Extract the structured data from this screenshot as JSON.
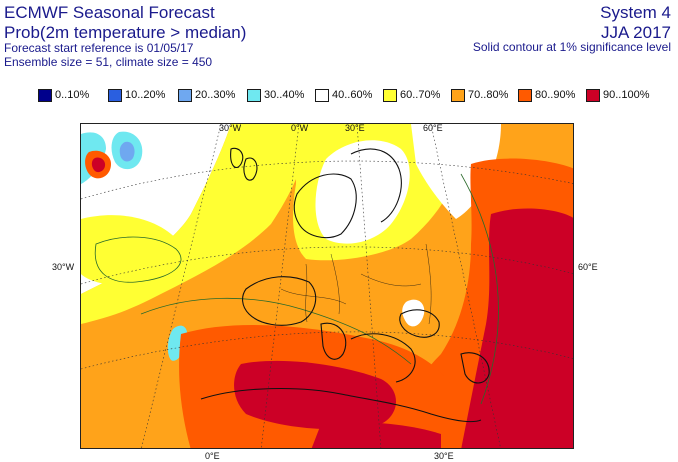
{
  "header": {
    "title": "ECMWF Seasonal Forecast",
    "subtitle": "Prob(2m temperature > median)",
    "start_ref": "Forecast start reference is 01/05/17",
    "ensemble": "Ensemble size = 51, climate size = 450",
    "system": "System 4",
    "period": "JJA 2017",
    "significance": "Solid contour at 1% significance level"
  },
  "legend": [
    {
      "label": "0..10%",
      "color": "#00008c"
    },
    {
      "label": "10..20%",
      "color": "#2a5fe0"
    },
    {
      "label": "20..30%",
      "color": "#6fa8f0"
    },
    {
      "label": "30..40%",
      "color": "#6fe8f0"
    },
    {
      "label": "40..60%",
      "color": "#ffffff"
    },
    {
      "label": "60..70%",
      "color": "#ffff33"
    },
    {
      "label": "70..80%",
      "color": "#ffa31a"
    },
    {
      "label": "80..90%",
      "color": "#ff5a00"
    },
    {
      "label": "90..100%",
      "color": "#cc0026"
    }
  ],
  "map": {
    "lon_labels_top": [
      "30°W",
      "0°W",
      "30°E",
      "60°E"
    ],
    "lon_labels_bottom": [
      "0°E",
      "30°E"
    ],
    "lat_labels": [
      "30°W",
      "60°E"
    ]
  }
}
